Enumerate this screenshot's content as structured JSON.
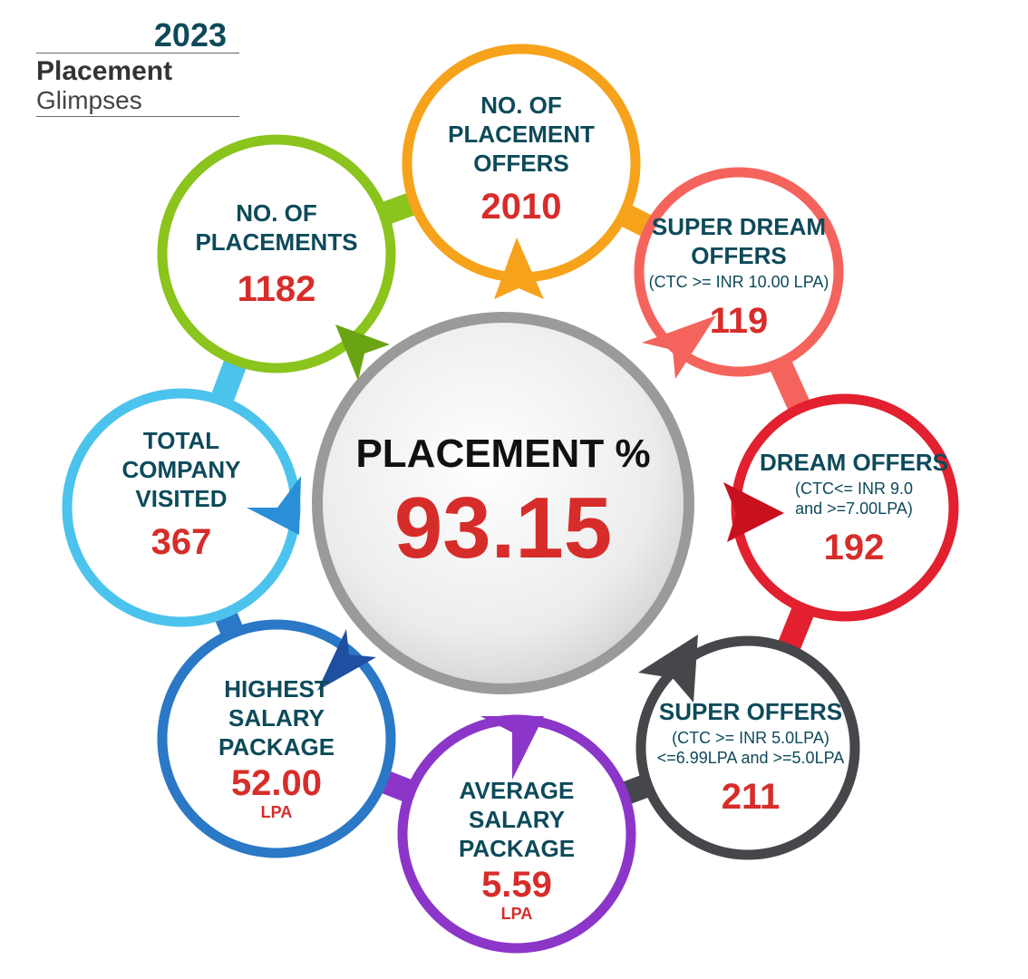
{
  "header": {
    "year": "2023",
    "title": "Placement",
    "subtitle": "Glimpses"
  },
  "center": {
    "label": "PLACEMENT %",
    "value": "93.15"
  },
  "cards": {
    "offers": {
      "label": "NO. OF\nPLACEMENT\nOFFERS",
      "value": "2010",
      "color": "#f6a31b"
    },
    "super_dream": {
      "label": "SUPER DREAM\nOFFERS",
      "note": "(CTC >= INR 10.00 LPA)",
      "value": "119",
      "color": "#f4645c"
    },
    "dream": {
      "label": "DREAM OFFERS",
      "note": "(CTC<= INR 9.0\nand >=7.00LPA)",
      "value": "192",
      "color": "#e2202f"
    },
    "super": {
      "label": "SUPER OFFERS",
      "note": "(CTC >= INR 5.0LPA)\n<=6.99LPA and >=5.0LPA",
      "value": "211",
      "color": "#45474b"
    },
    "average": {
      "label": "AVERAGE\nSALARY\nPACKAGE",
      "value": "5.59",
      "unit": "LPA",
      "color": "#8b36c9"
    },
    "highest": {
      "label": "HIGHEST\nSALARY\nPACKAGE",
      "value": "52.00",
      "unit": "LPA",
      "color": "#2a78c6"
    },
    "companies": {
      "label": "TOTAL\nCOMPANY\nVISITED",
      "value": "367",
      "color": "#4cc3ec"
    },
    "placements": {
      "label": "NO. OF\nPLACEMENTS",
      "value": "1182",
      "color": "#8ac41c"
    }
  }
}
